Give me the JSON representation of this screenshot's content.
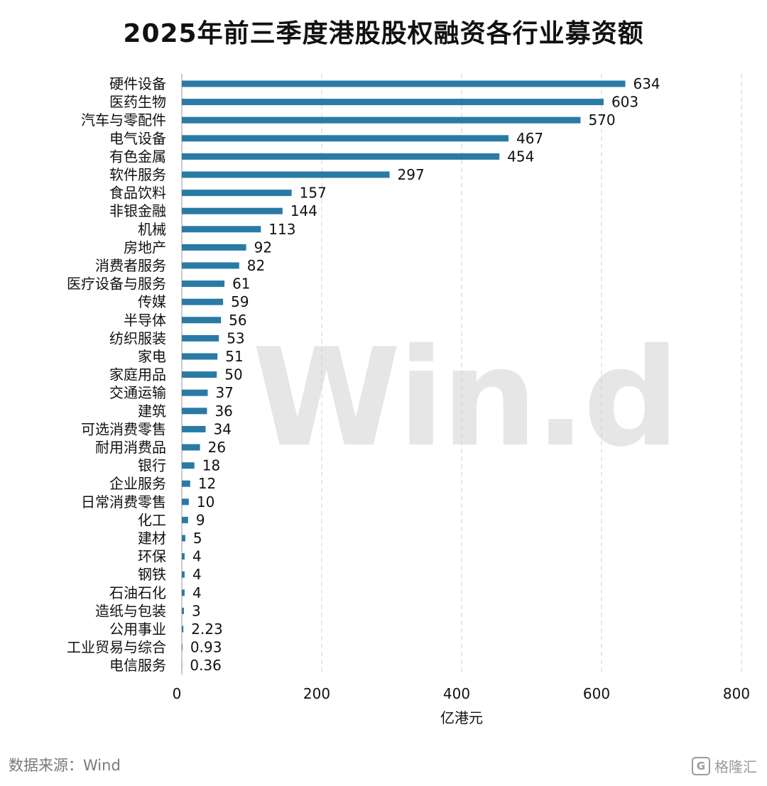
{
  "chart_data": {
    "type": "bar",
    "orientation": "horizontal",
    "title": "2025年前三季度港股股权融资各行业募资额",
    "xlabel": "亿港元",
    "ylabel": "",
    "xlim": [
      0,
      800
    ],
    "xticks": [
      "0",
      "200",
      "400",
      "600",
      "800"
    ],
    "grid": "vertical dashed",
    "bar_color": "#2a7aa6",
    "categories": [
      "硬件设备",
      "医药生物",
      "汽车与零配件",
      "电气设备",
      "有色金属",
      "软件服务",
      "食品饮料",
      "非银金融",
      "机械",
      "房地产",
      "消费者服务",
      "医疗设备与服务",
      "传媒",
      "半导体",
      "纺织服装",
      "家电",
      "家庭用品",
      "交通运输",
      "建筑",
      "可选消费零售",
      "耐用消费品",
      "银行",
      "企业服务",
      "日常消费零售",
      "化工",
      "建材",
      "环保",
      "钢铁",
      "石油石化",
      "造纸与包装",
      "公用事业",
      "工业贸易与综合",
      "电信服务"
    ],
    "values": [
      634,
      603,
      570,
      467,
      454,
      297,
      157,
      144,
      113,
      92,
      82,
      61,
      59,
      56,
      53,
      51,
      50,
      37,
      36,
      34,
      26,
      18,
      12,
      10,
      9,
      5,
      4,
      4,
      4,
      3,
      2.23,
      0.93,
      0.36
    ],
    "value_labels": [
      "634",
      "603",
      "570",
      "467",
      "454",
      "297",
      "157",
      "144",
      "113",
      "92",
      "82",
      "61",
      "59",
      "56",
      "53",
      "51",
      "50",
      "37",
      "36",
      "34",
      "26",
      "18",
      "12",
      "10",
      "9",
      "5",
      "4",
      "4",
      "4",
      "3",
      "2.23",
      "0.93",
      "0.36"
    ]
  },
  "watermark": "Win.d",
  "source": "数据来源：Wind",
  "brand": {
    "icon": "G",
    "text": "格隆汇"
  }
}
